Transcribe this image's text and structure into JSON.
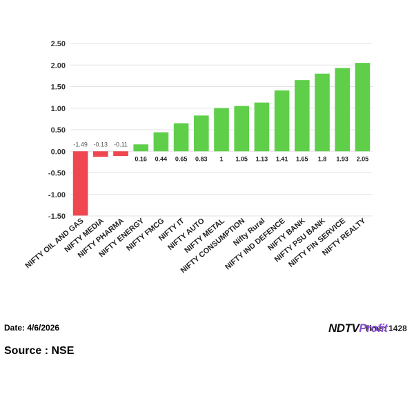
{
  "chart_data": {
    "type": "bar",
    "categories": [
      "NIFTY OIL AND GAS",
      "NIFTY MEDIA",
      "NIFTY PHARMA",
      "NIFTY ENERGY",
      "NIFTY FMCG",
      "NIFTY IT",
      "NIFTY AUTO",
      "NIFTY METAL",
      "NIFTY CONSUMPTION",
      "Nifty Rural",
      "NIFTY IND DEFENCE",
      "NIFTY BANK",
      "NIFTY PSU BANK",
      "NIFTY FIN SERVICE",
      "NIFTY REALTY"
    ],
    "values": [
      -1.49,
      -0.13,
      -0.11,
      0.16,
      0.44,
      0.65,
      0.83,
      1,
      1.05,
      1.13,
      1.41,
      1.65,
      1.8,
      1.93,
      2.05
    ],
    "value_labels": [
      "-1.49",
      "-0.13",
      "-0.11",
      "0.16",
      "0.44",
      "0.65",
      "0.83",
      "1",
      "1.05",
      "1.13",
      "1.41",
      "1.65",
      "1.8",
      "1.93",
      "2.05"
    ],
    "ylim": [
      -1.5,
      2.5
    ],
    "yticks": [
      "2.50",
      "2.00",
      "1.50",
      "1.00",
      "0.50",
      "0.00",
      "-0.50",
      "-1.00",
      "-1.50"
    ],
    "ytick_values": [
      2.5,
      2.0,
      1.5,
      1.0,
      0.5,
      0.0,
      -0.5,
      -1.0,
      -1.5
    ],
    "title": "",
    "xlabel": "",
    "ylabel": "",
    "grid": true,
    "colors": {
      "positive": "#5fcf4a",
      "negative": "#f0464f",
      "grid": "#e3e3e3"
    }
  },
  "footer": {
    "date": "Date: 4/6/2026",
    "time": "Time: 1428",
    "source": "Source : NSE",
    "logo_ndtv": "NDTV",
    "logo_profit": "Profit"
  }
}
